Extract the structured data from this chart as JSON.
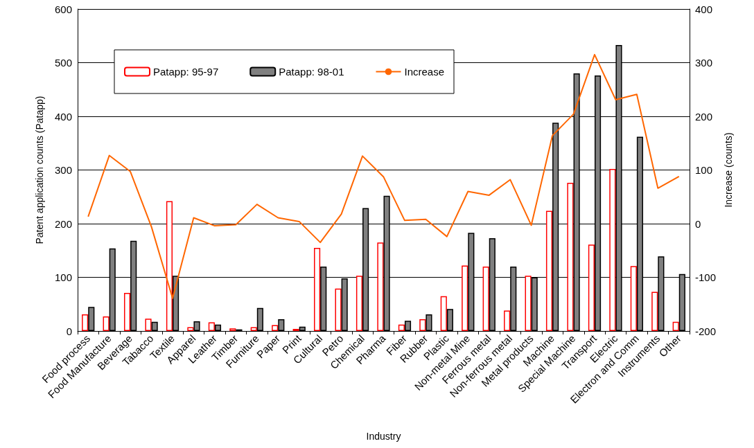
{
  "chart_data": {
    "type": "bar",
    "xlabel": "Industry",
    "ylabel": "Patent application counts (Patapp)",
    "y2label": "Increase (counts)",
    "categories": [
      "Food process",
      "Food Manufacture",
      "Beverage",
      "Tabacco",
      "Textile",
      "Apparel",
      "Leather",
      "Timber",
      "Furniture",
      "Paper",
      "Print",
      "Cultural",
      "Petro",
      "Chemical",
      "Pharma",
      "Fiber",
      "Rubber",
      "Plastic",
      "Non-metal Mine",
      "Ferrous metal",
      "Non-ferrous metal",
      "Metal products",
      "Machine",
      "Special Machine",
      "Transport",
      "Electric",
      "Electron and Comm",
      "Instruments",
      "Other"
    ],
    "series": [
      {
        "name": "Patapp: 95-97",
        "color": "#ff0000",
        "values": [
          31,
          27,
          71,
          23,
          242,
          7,
          16,
          5,
          7,
          11,
          4,
          155,
          79,
          103,
          165,
          12,
          22,
          65,
          122,
          120,
          38,
          103,
          224,
          276,
          161,
          302,
          121,
          73,
          17
        ]
      },
      {
        "name": "Patapp: 98-01",
        "color": "#808080",
        "values": [
          45,
          154,
          168,
          17,
          103,
          18,
          12,
          3,
          43,
          22,
          8,
          120,
          98,
          229,
          252,
          19,
          31,
          41,
          183,
          173,
          120,
          100,
          388,
          480,
          476,
          533,
          362,
          139,
          106
        ]
      },
      {
        "name": "Increase",
        "type": "line",
        "axis": "y2",
        "color": "#ff6600",
        "values": [
          13,
          127,
          97,
          -6,
          -139,
          11,
          -4,
          -2,
          36,
          11,
          4,
          -35,
          18,
          126,
          87,
          6,
          8,
          -24,
          60,
          53,
          82,
          -3,
          164,
          204,
          315,
          231,
          241,
          66,
          88
        ]
      }
    ],
    "ylim": [
      0,
      600
    ],
    "yticks": [
      0,
      100,
      200,
      300,
      400,
      500,
      600
    ],
    "y2lim": [
      -200,
      400
    ],
    "y2ticks": [
      -200,
      -100,
      0,
      100,
      200,
      300,
      400
    ],
    "grid": "y",
    "legend": "top left",
    "marker": "none",
    "line_style": "solid"
  }
}
